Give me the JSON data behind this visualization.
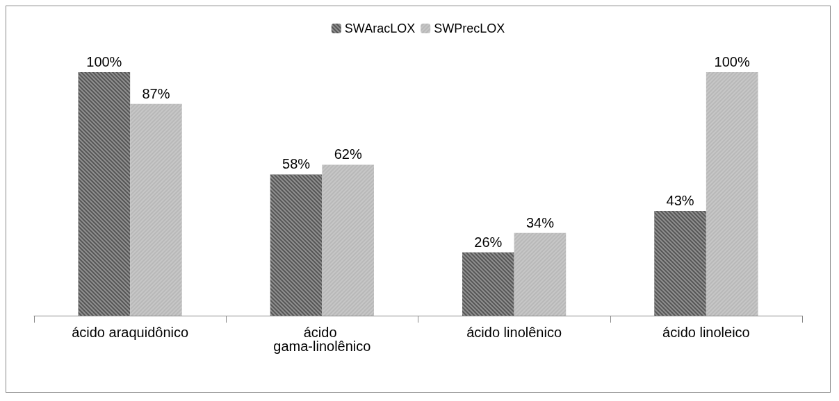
{
  "chart_data": {
    "type": "bar",
    "categories": [
      "ácido araquidônico",
      "ácido gama-linolênico",
      "ácido linolênico",
      "ácido linoleico"
    ],
    "series": [
      {
        "name": "SWAracLOX",
        "color": "#555555",
        "values": [
          100,
          58,
          26,
          43
        ],
        "value_labels": [
          "100%",
          "58%",
          "26%",
          "43%"
        ]
      },
      {
        "name": "SWPrecLOX",
        "color": "#b8b8b8",
        "values": [
          87,
          62,
          34,
          100
        ],
        "value_labels": [
          "87%",
          "62%",
          "34%",
          "100%"
        ]
      }
    ],
    "legend": "top",
    "grid": false
  }
}
